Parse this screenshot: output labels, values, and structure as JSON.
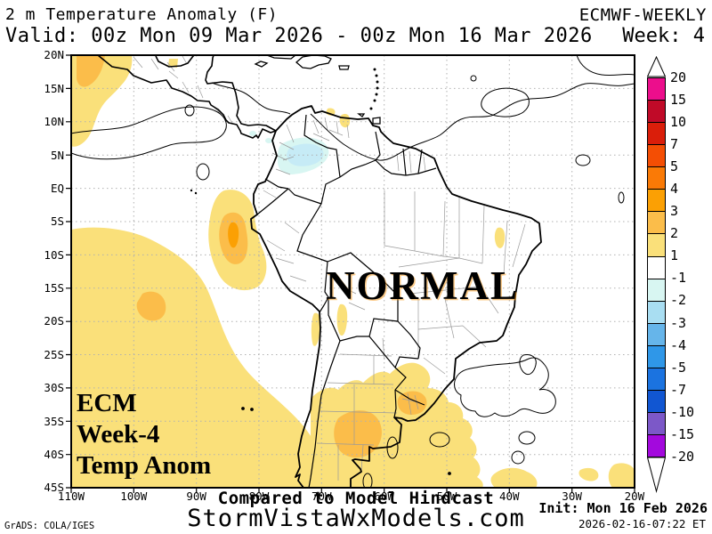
{
  "header": {
    "title_left": "2 m Temperature Anomaly (F)",
    "title_right": "ECMWF-WEEKLY",
    "valid_line": "Valid: 00z Mon 09 Mar 2026 - 00z Mon 16 Mar 2026",
    "week_label": "Week: 4"
  },
  "map": {
    "annotation": "NORMAL",
    "corner_label": [
      "ECM",
      "Week-4",
      "Temp Anom"
    ],
    "lat_ticks": [
      "20N",
      "15N",
      "10N",
      "5N",
      "EQ",
      "5S",
      "10S",
      "15S",
      "20S",
      "25S",
      "30S",
      "35S",
      "40S",
      "45S"
    ],
    "lon_ticks": [
      "110W",
      "100W",
      "90W",
      "80W",
      "70W",
      "60W",
      "50W",
      "40W",
      "30W",
      "20W"
    ]
  },
  "colorbar": {
    "labels": [
      "20",
      "15",
      "10",
      "7",
      "5",
      "4",
      "3",
      "2",
      "1",
      "-1",
      "-2",
      "-3",
      "-4",
      "-5",
      "-7",
      "-10",
      "-15",
      "-20"
    ],
    "colors": [
      "#ec0e8c",
      "#c00a28",
      "#da1e0a",
      "#f44e04",
      "#fa7a06",
      "#fba004",
      "#fbbd4a",
      "#fae07a",
      "#ffffff",
      "#d8f6f2",
      "#a9def2",
      "#66b5ea",
      "#2f97e8",
      "#1b73e0",
      "#1156d2",
      "#7c58c8",
      "#a309dd"
    ]
  },
  "anomaly_colors": {
    "plus1": "#fae07a",
    "plus2": "#fbbd4a",
    "plus3": "#fba004",
    "minus1": "#d8f6f2",
    "minus2": "#c6ebf6"
  },
  "footer": {
    "hindcast": "Compared to Model Hindcast",
    "site": "StormVistaWxModels.com",
    "credit": "GrADS: COLA/IGES",
    "init": "Init: Mon 16 Feb 2026",
    "timestamp": "2026-02-16-07:22 ET"
  }
}
